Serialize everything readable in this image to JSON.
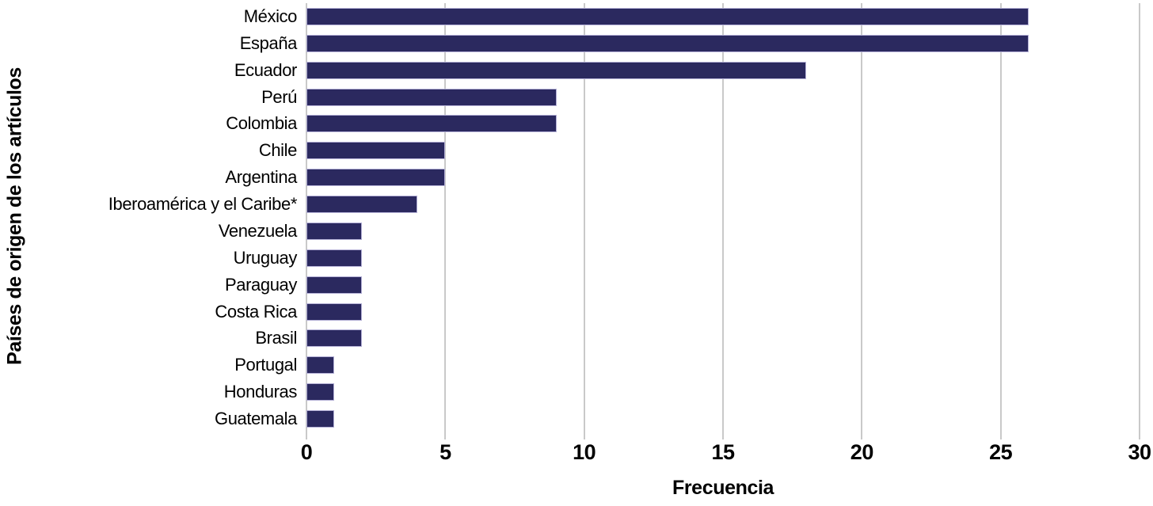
{
  "chart_data": {
    "type": "bar",
    "orientation": "horizontal",
    "title": "",
    "xlabel": "Frecuencia",
    "ylabel": "Países de origen de los artículos",
    "categories": [
      "México",
      "España",
      "Ecuador",
      "Perú",
      "Colombia",
      "Chile",
      "Argentina",
      "Iberoamérica y el Caribe*",
      "Venezuela",
      "Uruguay",
      "Paraguay",
      "Costa Rica",
      "Brasil",
      "Portugal",
      "Honduras",
      "Guatemala"
    ],
    "values": [
      26,
      26,
      18,
      9,
      9,
      5,
      5,
      4,
      2,
      2,
      2,
      2,
      2,
      1,
      1,
      1
    ],
    "xlim": [
      0,
      30
    ],
    "xticks": [
      0,
      5,
      10,
      15,
      20,
      25,
      30
    ],
    "grid": true,
    "legend": "none",
    "colors": {
      "bar_fill": "#2b295f",
      "bar_border": "#b4b0d6",
      "gridline": "#c9c9c9",
      "text": "#000000",
      "background": "#ffffff"
    }
  }
}
